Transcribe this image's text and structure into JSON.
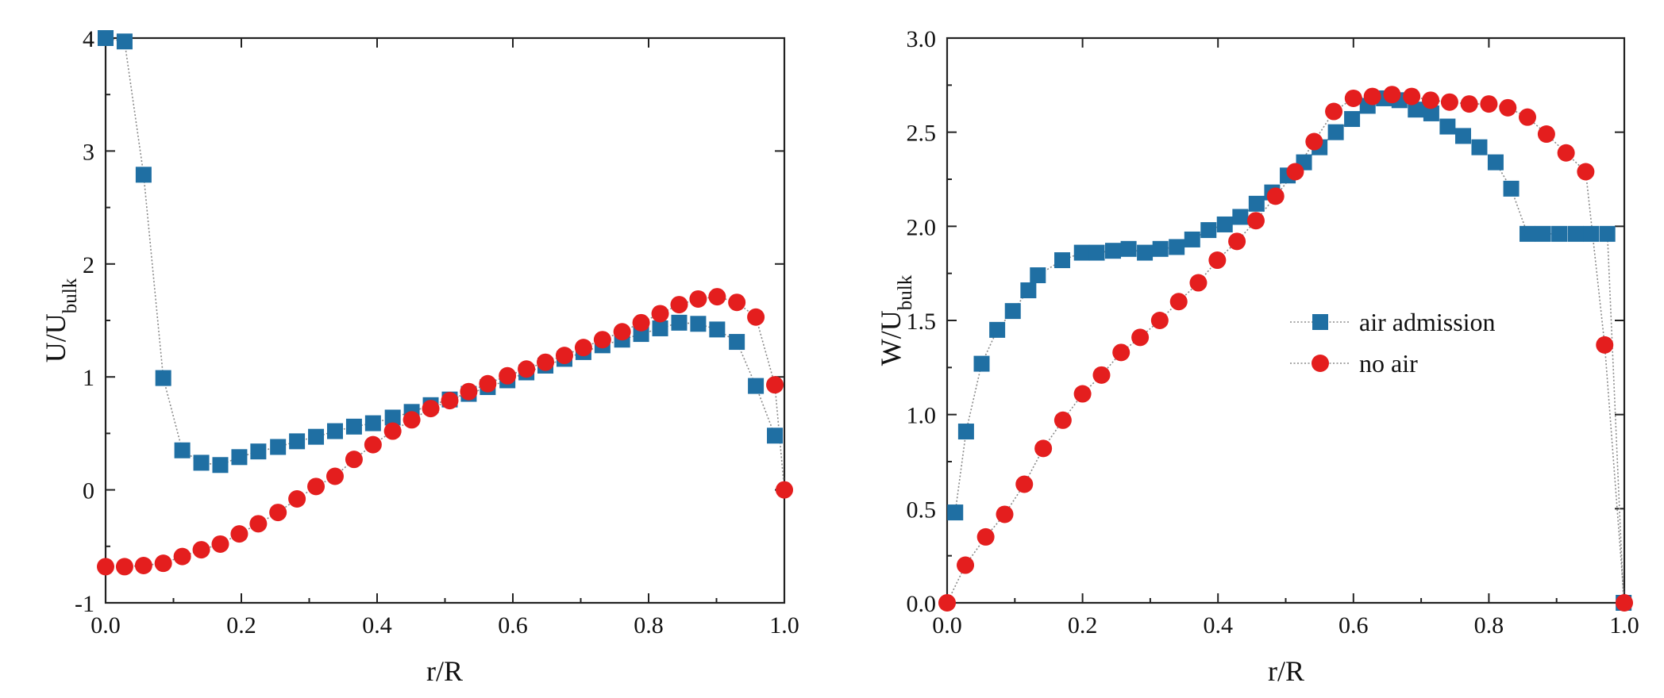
{
  "colors": {
    "air_admission": "#1f6fa3",
    "no_air": "#e41e1e",
    "curve": "#8a8a8a",
    "axis": "#222222"
  },
  "chart_data": [
    {
      "type": "scatter",
      "xlabel": "r/R",
      "ylabel_main": "U/U",
      "ylabel_sub": "bulk",
      "xlim": [
        0.0,
        1.0
      ],
      "ylim": [
        -1,
        4
      ],
      "xticks": [
        "0.0",
        "0.2",
        "0.4",
        "0.6",
        "0.8",
        "1.0"
      ],
      "yticks": [
        "-1",
        "0",
        "1",
        "2",
        "3",
        "4"
      ],
      "grid": false,
      "legend": "none",
      "series": [
        {
          "key": "air_admission",
          "marker": "square",
          "x": [
            0.0,
            0.028,
            0.056,
            0.085,
            0.113,
            0.141,
            0.169,
            0.197,
            0.225,
            0.254,
            0.282,
            0.31,
            0.338,
            0.366,
            0.394,
            0.423,
            0.451,
            0.479,
            0.507,
            0.535,
            0.563,
            0.592,
            0.62,
            0.648,
            0.676,
            0.704,
            0.732,
            0.761,
            0.789,
            0.817,
            0.845,
            0.873,
            0.901,
            0.93,
            0.958,
            0.986
          ],
          "y": [
            4.0,
            3.97,
            2.79,
            0.99,
            0.35,
            0.24,
            0.22,
            0.29,
            0.34,
            0.38,
            0.43,
            0.47,
            0.52,
            0.56,
            0.59,
            0.64,
            0.69,
            0.75,
            0.8,
            0.85,
            0.91,
            0.97,
            1.04,
            1.1,
            1.16,
            1.22,
            1.28,
            1.33,
            1.38,
            1.43,
            1.48,
            1.47,
            1.42,
            1.31,
            0.92,
            0.48
          ]
        },
        {
          "key": "no_air",
          "marker": "circle",
          "x": [
            0.0,
            0.028,
            0.056,
            0.085,
            0.113,
            0.141,
            0.169,
            0.197,
            0.225,
            0.254,
            0.282,
            0.31,
            0.338,
            0.366,
            0.394,
            0.423,
            0.451,
            0.479,
            0.507,
            0.535,
            0.563,
            0.592,
            0.62,
            0.648,
            0.676,
            0.704,
            0.732,
            0.761,
            0.789,
            0.817,
            0.845,
            0.873,
            0.901,
            0.93,
            0.958,
            0.986,
            1.0
          ],
          "y": [
            -0.68,
            -0.68,
            -0.67,
            -0.65,
            -0.59,
            -0.53,
            -0.48,
            -0.39,
            -0.3,
            -0.2,
            -0.08,
            0.03,
            0.12,
            0.27,
            0.4,
            0.52,
            0.62,
            0.72,
            0.79,
            0.87,
            0.94,
            1.01,
            1.07,
            1.13,
            1.19,
            1.26,
            1.33,
            1.4,
            1.48,
            1.56,
            1.64,
            1.69,
            1.71,
            1.66,
            1.53,
            0.93,
            0.0
          ]
        }
      ]
    },
    {
      "type": "scatter",
      "xlabel": "r/R",
      "ylabel_main": "W/U",
      "ylabel_sub": "bulk",
      "xlim": [
        0.0,
        1.0
      ],
      "ylim": [
        0.0,
        3.0
      ],
      "xticks": [
        "0.0",
        "0.2",
        "0.4",
        "0.6",
        "0.8",
        "1.0"
      ],
      "yticks": [
        "0.0",
        "0.5",
        "1.0",
        "1.5",
        "2.0",
        "2.5",
        "3.0"
      ],
      "grid": false,
      "legend": "center-right",
      "series": [
        {
          "key": "air_admission",
          "name": "air admission",
          "marker": "square",
          "x": [
            0.012,
            0.028,
            0.051,
            0.074,
            0.097,
            0.12,
            0.134,
            0.17,
            0.199,
            0.221,
            0.245,
            0.268,
            0.292,
            0.315,
            0.339,
            0.362,
            0.386,
            0.41,
            0.433,
            0.457,
            0.48,
            0.503,
            0.527,
            0.55,
            0.574,
            0.598,
            0.621,
            0.645,
            0.668,
            0.692,
            0.715,
            0.739,
            0.762,
            0.786,
            0.81,
            0.833,
            0.857,
            0.88,
            0.904,
            0.928,
            0.951,
            0.975,
            0.999
          ],
          "y": [
            0.48,
            0.91,
            1.27,
            1.45,
            1.55,
            1.66,
            1.74,
            1.82,
            1.86,
            1.86,
            1.87,
            1.88,
            1.86,
            1.88,
            1.89,
            1.93,
            1.98,
            2.01,
            2.05,
            2.12,
            2.18,
            2.27,
            2.34,
            2.42,
            2.5,
            2.57,
            2.64,
            2.68,
            2.67,
            2.62,
            2.6,
            2.53,
            2.48,
            2.42,
            2.34,
            2.2,
            1.96,
            1.96,
            1.96,
            1.96,
            1.96,
            1.96,
            0.0
          ]
        },
        {
          "key": "no_air",
          "name": "no air",
          "marker": "circle",
          "x": [
            0.0,
            0.027,
            0.057,
            0.085,
            0.114,
            0.142,
            0.171,
            0.2,
            0.228,
            0.257,
            0.285,
            0.314,
            0.342,
            0.371,
            0.399,
            0.428,
            0.456,
            0.485,
            0.514,
            0.542,
            0.571,
            0.6,
            0.628,
            0.657,
            0.686,
            0.714,
            0.742,
            0.771,
            0.8,
            0.828,
            0.857,
            0.885,
            0.914,
            0.943,
            0.971,
            1.0
          ],
          "y": [
            0.0,
            0.2,
            0.35,
            0.47,
            0.63,
            0.82,
            0.97,
            1.11,
            1.21,
            1.33,
            1.41,
            1.5,
            1.6,
            1.7,
            1.82,
            1.92,
            2.03,
            2.16,
            2.29,
            2.45,
            2.61,
            2.68,
            2.69,
            2.7,
            2.69,
            2.67,
            2.66,
            2.65,
            2.65,
            2.63,
            2.58,
            2.49,
            2.39,
            2.29,
            1.37,
            0.0
          ]
        }
      ]
    }
  ]
}
